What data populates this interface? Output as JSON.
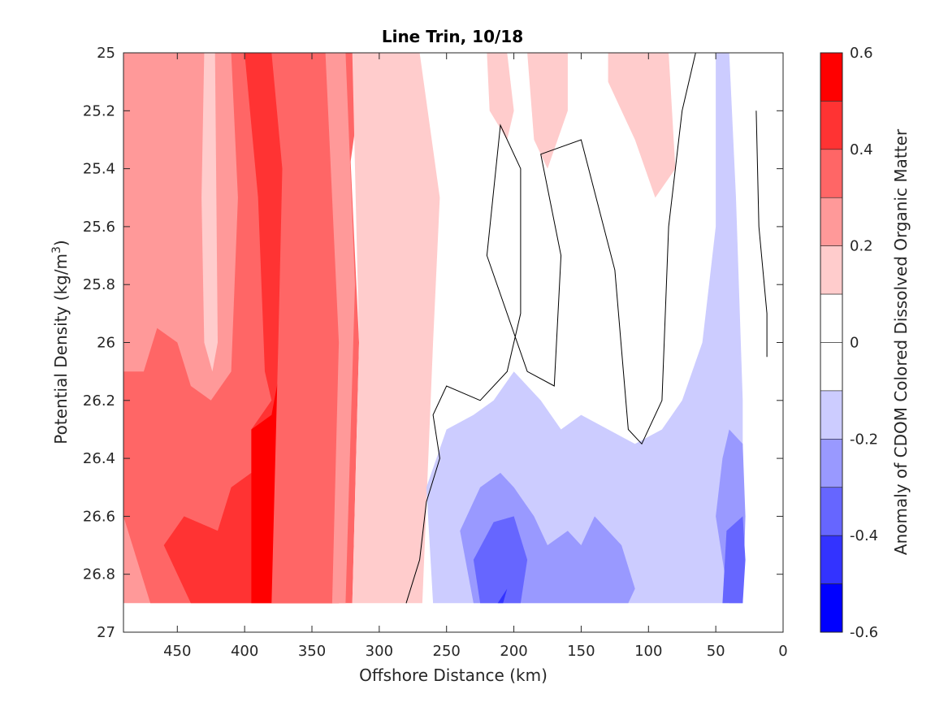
{
  "chart_data": {
    "type": "heatmap",
    "subtype": "filled-contour",
    "title": "Line Trin, 10/18",
    "xlabel": "Offshore Distance (km)",
    "ylabel": "Potential Density (kg/m",
    "ylabel_sup": "3",
    "ylabel_tail": ")",
    "colorbar_label": "Anomaly of CDOM Colored Dissolved Organic Matter",
    "xlim": [
      490,
      0
    ],
    "x_reversed": true,
    "ylim": [
      25.0,
      27.0
    ],
    "y_reversed": true,
    "xticks": [
      450,
      400,
      350,
      300,
      250,
      200,
      150,
      100,
      50,
      0
    ],
    "yticks": [
      25,
      25.2,
      25.4,
      25.6,
      25.8,
      26,
      26.2,
      26.4,
      26.6,
      26.8,
      27
    ],
    "ytick_labels": [
      "25",
      "25.2",
      "25.4",
      "25.6",
      "25.8",
      "26",
      "26.2",
      "26.4",
      "26.6",
      "26.8",
      "27"
    ],
    "colorbar_ticks": [
      0.6,
      0.4,
      0.2,
      0,
      -0.2,
      -0.4,
      -0.6
    ],
    "colorbar_tick_labels": [
      "0.6",
      "0.4",
      "0.2",
      "0",
      "-0.2",
      "-0.4",
      "-0.6"
    ],
    "levels": [
      -0.6,
      -0.5,
      -0.4,
      -0.3,
      -0.2,
      -0.1,
      0.1,
      0.2,
      0.3,
      0.4,
      0.5,
      0.6
    ],
    "colors": {
      "-0.55": "#0000ff",
      "-0.45": "#3333ff",
      "-0.35": "#6666ff",
      "-0.25": "#9999ff",
      "-0.15": "#ccccff",
      "0": "#ffffff",
      "0.15": "#ffcccc",
      "0.25": "#ff9999",
      "0.35": "#ff6666",
      "0.45": "#ff3333",
      "0.55": "#ff0000"
    },
    "colorbar_bins": [
      {
        "range": [
          0.5,
          0.6
        ],
        "color": "#ff0000"
      },
      {
        "range": [
          0.4,
          0.5
        ],
        "color": "#ff3333"
      },
      {
        "range": [
          0.3,
          0.4
        ],
        "color": "#ff6666"
      },
      {
        "range": [
          0.2,
          0.3
        ],
        "color": "#ff9999"
      },
      {
        "range": [
          0.1,
          0.2
        ],
        "color": "#ffcccc"
      },
      {
        "range": [
          0.0,
          0.1
        ],
        "color": "#ffffff"
      },
      {
        "range": [
          -0.1,
          0.0
        ],
        "color": "#ffffff"
      },
      {
        "range": [
          -0.2,
          -0.1
        ],
        "color": "#ccccff"
      },
      {
        "range": [
          -0.3,
          -0.2
        ],
        "color": "#9999ff"
      },
      {
        "range": [
          -0.4,
          -0.3
        ],
        "color": "#6666ff"
      },
      {
        "range": [
          -0.5,
          -0.4
        ],
        "color": "#3333ff"
      },
      {
        "range": [
          -0.6,
          -0.5
        ],
        "color": "#0000ff"
      }
    ],
    "data_max_density": 26.9,
    "regions": [
      {
        "value": 0.25,
        "color": "#ff9999",
        "points": [
          [
            490,
            25.0
          ],
          [
            330,
            25.0
          ],
          [
            320,
            26.0
          ],
          [
            330,
            26.9
          ],
          [
            490,
            26.9
          ]
        ]
      },
      {
        "value": 0.15,
        "color": "#ffcccc",
        "points": [
          [
            430,
            25.0
          ],
          [
            422,
            25.0
          ],
          [
            420,
            26.0
          ],
          [
            424,
            26.1
          ],
          [
            430,
            26.0
          ],
          [
            432,
            25.5
          ]
        ]
      },
      {
        "value": 0.35,
        "color": "#ff6666",
        "points": [
          [
            410,
            25.0
          ],
          [
            325,
            25.0
          ],
          [
            315,
            26.0
          ],
          [
            320,
            26.9
          ],
          [
            470,
            26.9
          ],
          [
            490,
            26.6
          ],
          [
            490,
            26.1
          ],
          [
            475,
            26.1
          ],
          [
            465,
            25.95
          ],
          [
            450,
            26.0
          ],
          [
            440,
            26.15
          ],
          [
            425,
            26.2
          ],
          [
            410,
            26.1
          ],
          [
            405,
            25.5
          ]
        ]
      },
      {
        "value": 0.45,
        "color": "#ff3333",
        "points": [
          [
            400,
            25.0
          ],
          [
            335,
            25.0
          ],
          [
            330,
            26.0
          ],
          [
            330,
            26.9
          ],
          [
            440,
            26.9
          ],
          [
            460,
            26.7
          ],
          [
            445,
            26.6
          ],
          [
            420,
            26.65
          ],
          [
            410,
            26.5
          ],
          [
            395,
            26.45
          ],
          [
            395,
            26.3
          ],
          [
            380,
            26.2
          ],
          [
            375,
            26.3
          ],
          [
            385,
            26.1
          ],
          [
            390,
            25.5
          ]
        ]
      },
      {
        "value": 0.55,
        "color": "#ff0000",
        "points": [
          [
            375,
            25.0
          ],
          [
            345,
            25.0
          ],
          [
            340,
            26.0
          ],
          [
            335,
            26.9
          ],
          [
            395,
            26.9
          ],
          [
            395,
            26.6
          ],
          [
            395,
            26.3
          ],
          [
            380,
            26.25
          ],
          [
            370,
            26.0
          ],
          [
            365,
            25.5
          ]
        ]
      },
      {
        "value": 0.35,
        "color": "#ff6666",
        "points": [
          [
            490,
            25.0
          ],
          [
            380,
            25.0
          ],
          [
            372,
            25.4
          ],
          [
            375,
            26.0
          ],
          [
            380,
            26.9
          ],
          [
            330,
            26.9
          ],
          [
            330,
            26.0
          ],
          [
            325,
            25.5
          ],
          [
            310,
            25.0
          ]
        ]
      },
      {
        "value": 0.15,
        "color": "#ffcccc",
        "points": [
          [
            320,
            25.0
          ],
          [
            270,
            25.0
          ],
          [
            255,
            25.5
          ],
          [
            260,
            26.0
          ],
          [
            268,
            26.9
          ],
          [
            320,
            26.9
          ],
          [
            315,
            26.0
          ]
        ]
      },
      {
        "value": 0.25,
        "color": "#ff9999",
        "points": [
          [
            340,
            25.0
          ],
          [
            325,
            25.0
          ],
          [
            318,
            25.8
          ],
          [
            325,
            26.9
          ],
          [
            335,
            26.9
          ],
          [
            330,
            26.0
          ]
        ]
      },
      {
        "value": 0.15,
        "color": "#ffcccc",
        "points": [
          [
            220,
            25.0
          ],
          [
            205,
            25.0
          ],
          [
            200,
            25.2
          ],
          [
            205,
            25.3
          ],
          [
            218,
            25.2
          ]
        ]
      },
      {
        "value": 0.15,
        "color": "#ffcccc",
        "points": [
          [
            190,
            25.0
          ],
          [
            160,
            25.0
          ],
          [
            160,
            25.2
          ],
          [
            175,
            25.4
          ],
          [
            185,
            25.3
          ]
        ]
      },
      {
        "value": 0.15,
        "color": "#ffcccc",
        "points": [
          [
            130,
            25.0
          ],
          [
            85,
            25.0
          ],
          [
            80,
            25.4
          ],
          [
            95,
            25.5
          ],
          [
            110,
            25.3
          ],
          [
            130,
            25.1
          ]
        ]
      },
      {
        "value": -0.15,
        "color": "#ccccff",
        "points": [
          [
            260,
            26.9
          ],
          [
            265,
            26.5
          ],
          [
            250,
            26.3
          ],
          [
            230,
            26.25
          ],
          [
            215,
            26.2
          ],
          [
            200,
            26.1
          ],
          [
            180,
            26.2
          ],
          [
            165,
            26.3
          ],
          [
            150,
            26.25
          ],
          [
            130,
            26.3
          ],
          [
            110,
            26.35
          ],
          [
            90,
            26.3
          ],
          [
            75,
            26.2
          ],
          [
            60,
            26.0
          ],
          [
            50,
            25.6
          ],
          [
            50,
            25.0
          ],
          [
            40,
            25.0
          ],
          [
            35,
            25.5
          ],
          [
            30,
            26.2
          ],
          [
            30,
            26.9
          ]
        ]
      },
      {
        "value": -0.25,
        "color": "#9999ff",
        "points": [
          [
            230,
            26.9
          ],
          [
            240,
            26.65
          ],
          [
            225,
            26.5
          ],
          [
            210,
            26.45
          ],
          [
            200,
            26.5
          ],
          [
            185,
            26.6
          ],
          [
            175,
            26.7
          ],
          [
            160,
            26.65
          ],
          [
            150,
            26.7
          ],
          [
            140,
            26.6
          ],
          [
            120,
            26.7
          ],
          [
            110,
            26.85
          ],
          [
            115,
            26.9
          ]
        ]
      },
      {
        "value": -0.25,
        "color": "#9999ff",
        "points": [
          [
            40,
            26.9
          ],
          [
            50,
            26.6
          ],
          [
            45,
            26.4
          ],
          [
            40,
            26.3
          ],
          [
            30,
            26.35
          ],
          [
            28,
            26.6
          ],
          [
            30,
            26.9
          ]
        ]
      },
      {
        "value": -0.35,
        "color": "#6666ff",
        "points": [
          [
            225,
            26.9
          ],
          [
            230,
            26.75
          ],
          [
            215,
            26.62
          ],
          [
            200,
            26.6
          ],
          [
            190,
            26.75
          ],
          [
            195,
            26.9
          ]
        ]
      },
      {
        "value": -0.35,
        "color": "#6666ff",
        "points": [
          [
            45,
            26.9
          ],
          [
            42,
            26.65
          ],
          [
            30,
            26.6
          ],
          [
            28,
            26.75
          ],
          [
            30,
            26.9
          ]
        ]
      },
      {
        "value": -0.45,
        "color": "#3333ff",
        "points": [
          [
            212,
            26.9
          ],
          [
            205,
            26.85
          ],
          [
            208,
            26.9
          ]
        ]
      }
    ]
  }
}
